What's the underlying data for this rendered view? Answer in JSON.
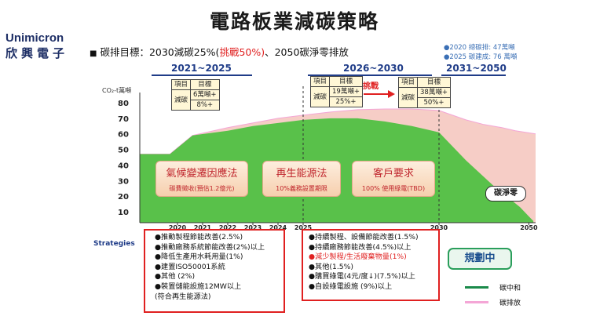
{
  "title": "電路板業減碳策略",
  "logo": {
    "en": "Unimicron",
    "zh": "欣興電子"
  },
  "goal": {
    "prefix": "碳排目標：2030減碳25%(",
    "highlight": "挑戰50%)",
    "suffix": "、2050碳淨零排放"
  },
  "notes": [
    "●2020 總碳排: 47萬噸",
    "●2025 碳建成: 76 萬噸"
  ],
  "eras": [
    "2021~2025",
    "2026~2030",
    "2031~2050"
  ],
  "tables": {
    "first": {
      "headers": [
        "項目",
        "目標"
      ],
      "row_label": "減碳",
      "values": [
        "6萬噸+",
        "8%+"
      ]
    },
    "second": {
      "headers": [
        "項目",
        "目標"
      ],
      "row_label": "減碳",
      "values": [
        "19萬噸+",
        "25%+"
      ]
    },
    "challenge": "挑戰",
    "third": {
      "headers": [
        "項目",
        "目標"
      ],
      "row_label": "減碳",
      "values": [
        "38萬噸+",
        "50%+"
      ]
    }
  },
  "drivers": [
    {
      "title": "氣候變遷因應法",
      "subtitle": "碳費徵收(預估1.2億元)"
    },
    {
      "title": "再生能源法",
      "subtitle": "10%義務設置期限"
    },
    {
      "title": "客戶要求",
      "subtitle": "100% 使用綠電(TBD)"
    }
  ],
  "net_zero_label": "碳淨零",
  "strategies_label": "Strategies",
  "strategies_left": [
    {
      "text": "●推動製程節能改善(2.5%)",
      "color": "blue"
    },
    {
      "text": "●推動廠務系統節能改善(2%)以上",
      "color": "blue"
    },
    {
      "text": "●降低生產用水耗用量(1%)",
      "color": "blue"
    },
    {
      "text": "●建置ISO50001系統",
      "color": "blue"
    },
    {
      "text": "●其他 (2%)",
      "color": "black"
    },
    {
      "text": "●裝置儲能設施12MW以上",
      "color": "green"
    },
    {
      "text": "(符合再生能源法)",
      "color": "green"
    }
  ],
  "strategies_right": [
    {
      "text": "●持續製程、設備節能改善(1.5%)",
      "color": "blue"
    },
    {
      "text": "●持續廠務節能改善(4.5%)以上",
      "color": "blue"
    },
    {
      "text": "●減少製程/生活廢棄物量(1%)",
      "color": "red"
    },
    {
      "text": "●其他(1.5%)",
      "color": "black"
    },
    {
      "text": "●購買綠電(4元/度↓)(7.5%)以上",
      "color": "green"
    },
    {
      "text": "●自設綠電設施 (9%)以上",
      "color": "green"
    }
  ],
  "plan_label": "規劃中",
  "legend": [
    {
      "label": "碳中和",
      "color": "#1a8a4a"
    },
    {
      "label": "碳排放",
      "color": "#f4a6d6"
    }
  ],
  "chart_data": {
    "type": "area",
    "ylabel": "CO₂-t萬噸",
    "ylim": [
      0,
      85
    ],
    "yticks": [
      10,
      20,
      30,
      40,
      50,
      60,
      70,
      80
    ],
    "xlim": [
      2018.5,
      2051.5
    ],
    "xticks": [
      2020,
      2021,
      2022,
      2023,
      2024,
      2025,
      2030,
      2050
    ],
    "series": [
      {
        "name": "碳排放",
        "color": "#f6cdc6",
        "line_color": "#f4a6d6",
        "points": [
          [
            2018.5,
            47
          ],
          [
            2019.7,
            47
          ],
          [
            2020.6,
            59
          ],
          [
            2022,
            64
          ],
          [
            2024,
            70
          ],
          [
            2025,
            72
          ],
          [
            2026,
            74
          ],
          [
            2027,
            75.5
          ],
          [
            2028,
            76
          ],
          [
            2029,
            76
          ],
          [
            2030,
            75
          ],
          [
            2033,
            72
          ],
          [
            2036,
            69
          ],
          [
            2040,
            66
          ],
          [
            2044,
            64
          ],
          [
            2047,
            62
          ],
          [
            2051.5,
            60
          ]
        ]
      },
      {
        "name": "碳中和",
        "color": "#59c14a",
        "line_color": "#1a8a4a",
        "points": [
          [
            2018.5,
            47
          ],
          [
            2019.7,
            47
          ],
          [
            2020.6,
            59
          ],
          [
            2022,
            62
          ],
          [
            2023,
            65
          ],
          [
            2024,
            67
          ],
          [
            2025,
            69
          ],
          [
            2026,
            70
          ],
          [
            2027,
            70
          ],
          [
            2028,
            68
          ],
          [
            2029,
            65
          ],
          [
            2030,
            61
          ],
          [
            2033,
            52
          ],
          [
            2036,
            43
          ],
          [
            2039,
            35
          ],
          [
            2042,
            27
          ],
          [
            2045,
            20
          ],
          [
            2048,
            13
          ],
          [
            2050,
            7
          ],
          [
            2051,
            4
          ]
        ]
      }
    ]
  }
}
